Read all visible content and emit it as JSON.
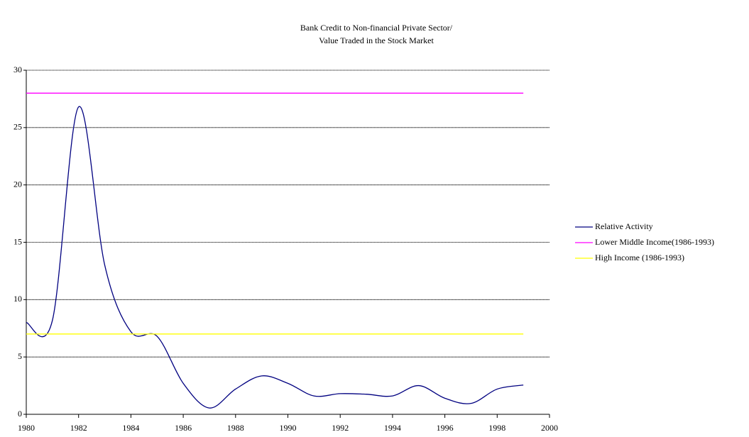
{
  "chart_data": {
    "type": "line",
    "title": [
      "Bank Credit to Non-financial Private Sector/",
      "Value Traded in the Stock Market"
    ],
    "x": [
      1980,
      1981,
      1982,
      1983,
      1984,
      1985,
      1986,
      1987,
      1988,
      1989,
      1990,
      1991,
      1992,
      1993,
      1994,
      1995,
      1996,
      1997,
      1998,
      1999
    ],
    "series": [
      {
        "name": "Relative Activity",
        "color": "#000080",
        "smooth": true,
        "values": [
          8.0,
          8.2,
          26.8,
          13.0,
          7.2,
          6.8,
          2.7,
          0.55,
          2.2,
          3.35,
          2.7,
          1.6,
          1.8,
          1.75,
          1.6,
          2.5,
          1.4,
          0.95,
          2.2,
          2.55
        ]
      },
      {
        "name": "Lower Middle Income(1986-1993)",
        "color": "#ff00ff",
        "smooth": false,
        "values": [
          28,
          28,
          28,
          28,
          28,
          28,
          28,
          28,
          28,
          28,
          28,
          28,
          28,
          28,
          28,
          28,
          28,
          28,
          28,
          28
        ]
      },
      {
        "name": "High Income (1986-1993)",
        "color": "#ffff00",
        "smooth": false,
        "values": [
          7,
          7,
          7,
          7,
          7,
          7,
          7,
          7,
          7,
          7,
          7,
          7,
          7,
          7,
          7,
          7,
          7,
          7,
          7,
          7
        ]
      }
    ],
    "xlim": [
      1980,
      2000
    ],
    "xticks": [
      1980,
      1982,
      1984,
      1986,
      1988,
      1990,
      1992,
      1994,
      1996,
      1998,
      2000
    ],
    "ylim": [
      0,
      30
    ],
    "yticks": [
      0,
      5,
      10,
      15,
      20,
      25,
      30
    ],
    "grid": true,
    "legend": "right"
  }
}
